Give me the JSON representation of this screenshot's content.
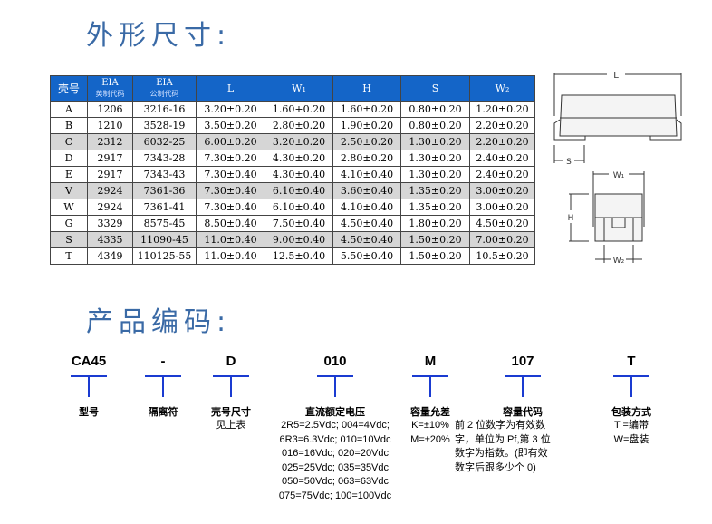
{
  "sections": {
    "dimensions_title": "外形尺寸:",
    "code_title": "产品编码:"
  },
  "table": {
    "headers": [
      {
        "main": "壳号",
        "sub": ""
      },
      {
        "main": "EIA",
        "sub": "英制代码"
      },
      {
        "main": "EIA",
        "sub": "公制代码"
      },
      {
        "main": "L",
        "sub": ""
      },
      {
        "main": "W₁",
        "sub": ""
      },
      {
        "main": "H",
        "sub": ""
      },
      {
        "main": "S",
        "sub": ""
      },
      {
        "main": "W₂",
        "sub": ""
      }
    ],
    "rows": [
      [
        "A",
        "1206",
        "3216-16",
        "3.20±0.20",
        "1.60+0.20",
        "1.60±0.20",
        "0.80±0.20",
        "1.20±0.20"
      ],
      [
        "B",
        "1210",
        "3528-19",
        "3.50±0.20",
        "2.80±0.20",
        "1.90±0.20",
        "0.80±0.20",
        "2.20±0.20"
      ],
      [
        "C",
        "2312",
        "6032-25",
        "6.00±0.20",
        "3.20±0.20",
        "2.50±0.20",
        "1.30±0.20",
        "2.20±0.20"
      ],
      [
        "D",
        "2917",
        "7343-28",
        "7.30±0.20",
        "4.30±0.20",
        "2.80±0.20",
        "1.30±0.20",
        "2.40±0.20"
      ],
      [
        "E",
        "2917",
        "7343-43",
        "7.30±0.40",
        "4.30±0.40",
        "4.10±0.40",
        "1.30±0.20",
        "2.40±0.20"
      ],
      [
        "V",
        "2924",
        "7361-36",
        "7.30±0.40",
        "6.10±0.40",
        "3.60±0.40",
        "1.35±0.20",
        "3.00±0.20"
      ],
      [
        "W",
        "2924",
        "7361-41",
        "7.30±0.40",
        "6.10±0.40",
        "4.10±0.40",
        "1.35±0.20",
        "3.00±0.20"
      ],
      [
        "G",
        "3329",
        "8575-45",
        "8.50±0.40",
        "7.50±0.40",
        "4.50±0.40",
        "1.80±0.20",
        "4.50±0.20"
      ],
      [
        "S",
        "4335",
        "11090-45",
        "11.0±0.40",
        "9.00±0.40",
        "4.50±0.40",
        "1.50±0.20",
        "7.00±0.20"
      ],
      [
        "T",
        "4349",
        "110125-55",
        "11.0±0.40",
        "12.5±0.40",
        "5.50±0.40",
        "1.50±0.20",
        "10.5±0.20"
      ]
    ],
    "shaded_rows": [
      2,
      5,
      8
    ]
  },
  "diagram": {
    "labels": {
      "L": "L",
      "S": "S",
      "W1": "W₁",
      "H": "H",
      "W2": "W₂"
    }
  },
  "code": [
    {
      "code": "CA45",
      "label": "型号",
      "desc": ""
    },
    {
      "code": "-",
      "label": "隔离符",
      "desc": ""
    },
    {
      "code": "D",
      "label": "壳号尺寸",
      "desc": "见上表"
    },
    {
      "code": "010",
      "label": "直流额定电压",
      "desc": "2R5=2.5Vdc; 004=4Vdc;\n6R3=6.3Vdc; 010=10Vdc\n016=16Vdc; 020=20Vdc\n025=25Vdc; 035=35Vdc\n050=50Vdc; 063=63Vdc\n075=75Vdc; 100=100Vdc"
    },
    {
      "code": "M",
      "label": "容量允差",
      "desc": "K=±10%\nM=±20%"
    },
    {
      "code": "107",
      "label": "容量代码",
      "desc": "前 2 位数字为有效数\n字，单位为 Pf,第 3 位\n数字为指数。(即有效\n数字后跟多少个 0)"
    },
    {
      "code": "T",
      "label": "包装方式",
      "desc": "T =编带\nW=盘装"
    }
  ],
  "colors": {
    "title": "#3a6aa6",
    "header": "#1465c8",
    "tee": "#1a3bd1"
  }
}
